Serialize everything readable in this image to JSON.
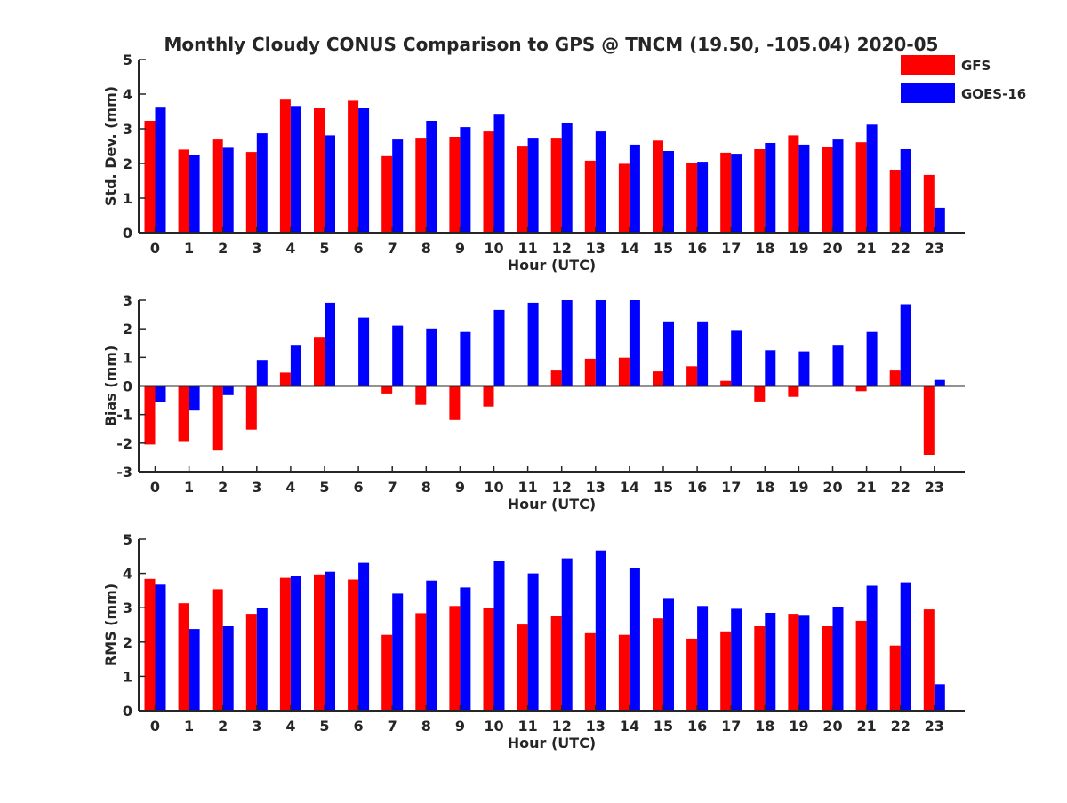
{
  "title": "Monthly Cloudy CONUS Comparison to GPS @ TNCM (19.50, -105.04) 2020-05",
  "colors": {
    "GFS": "#ff0000",
    "GOES-16": "#0000ff",
    "axis": "#262626",
    "background": "#ffffff"
  },
  "legend": {
    "placement": "top-right",
    "entries": [
      "GFS",
      "GOES-16"
    ]
  },
  "chart_data": [
    {
      "type": "bar",
      "xlabel": "Hour (UTC)",
      "ylabel": "Std. Dev. (mm)",
      "ylim": [
        0,
        5
      ],
      "yticks": [
        0,
        1,
        2,
        3,
        4,
        5
      ],
      "grid": false,
      "categories": [
        "0",
        "1",
        "2",
        "3",
        "4",
        "5",
        "6",
        "7",
        "8",
        "9",
        "10",
        "11",
        "12",
        "13",
        "14",
        "15",
        "16",
        "17",
        "18",
        "19",
        "20",
        "21",
        "22",
        "23"
      ],
      "series": [
        {
          "name": "GFS",
          "values": [
            3.23,
            2.4,
            2.69,
            2.33,
            3.84,
            3.59,
            3.81,
            2.21,
            2.74,
            2.77,
            2.92,
            2.51,
            2.74,
            2.08,
            1.99,
            2.66,
            2.01,
            2.31,
            2.41,
            2.81,
            2.48,
            2.61,
            1.82,
            1.67
          ]
        },
        {
          "name": "GOES-16",
          "values": [
            3.61,
            2.23,
            2.45,
            2.87,
            3.66,
            2.81,
            3.59,
            2.69,
            3.23,
            3.05,
            3.43,
            2.74,
            3.18,
            2.92,
            2.54,
            2.36,
            2.05,
            2.28,
            2.59,
            2.54,
            2.69,
            3.12,
            2.41,
            0.72
          ]
        }
      ]
    },
    {
      "type": "bar",
      "xlabel": "Hour (UTC)",
      "ylabel": "Bias (mm)",
      "ylim": [
        -3,
        3
      ],
      "yticks": [
        -3,
        -2,
        -1,
        0,
        1,
        2,
        3
      ],
      "grid": false,
      "categories": [
        "0",
        "1",
        "2",
        "3",
        "4",
        "5",
        "6",
        "7",
        "8",
        "9",
        "10",
        "11",
        "12",
        "13",
        "14",
        "15",
        "16",
        "17",
        "18",
        "19",
        "20",
        "21",
        "22",
        "23"
      ],
      "series": [
        {
          "name": "GFS",
          "values": [
            -2.05,
            -1.96,
            -2.26,
            -1.53,
            0.47,
            1.72,
            0.0,
            -0.26,
            -0.66,
            -1.19,
            -0.72,
            0.0,
            0.54,
            0.95,
            0.99,
            0.51,
            0.69,
            0.18,
            -0.54,
            -0.38,
            0.02,
            -0.18,
            0.54,
            -2.41
          ]
        },
        {
          "name": "GOES-16",
          "values": [
            -0.56,
            -0.86,
            -0.32,
            0.91,
            1.44,
            2.91,
            2.39,
            2.11,
            2.01,
            1.89,
            2.66,
            2.91,
            3.0,
            3.0,
            3.0,
            2.26,
            2.26,
            1.93,
            1.25,
            1.21,
            1.44,
            1.89,
            2.86,
            0.21
          ]
        }
      ]
    },
    {
      "type": "bar",
      "xlabel": "Hour (UTC)",
      "ylabel": "RMS (mm)",
      "ylim": [
        0,
        5
      ],
      "yticks": [
        0,
        1,
        2,
        3,
        4,
        5
      ],
      "grid": false,
      "categories": [
        "0",
        "1",
        "2",
        "3",
        "4",
        "5",
        "6",
        "7",
        "8",
        "9",
        "10",
        "11",
        "12",
        "13",
        "14",
        "15",
        "16",
        "17",
        "18",
        "19",
        "20",
        "21",
        "22",
        "23"
      ],
      "series": [
        {
          "name": "GFS",
          "values": [
            3.84,
            3.13,
            3.54,
            2.82,
            3.87,
            3.97,
            3.82,
            2.21,
            2.84,
            3.05,
            3.0,
            2.51,
            2.77,
            2.26,
            2.21,
            2.69,
            2.1,
            2.31,
            2.46,
            2.82,
            2.46,
            2.62,
            1.9,
            2.95
          ]
        },
        {
          "name": "GOES-16",
          "values": [
            3.67,
            2.38,
            2.46,
            3.0,
            3.92,
            4.05,
            4.31,
            3.41,
            3.79,
            3.59,
            4.36,
            4.0,
            4.44,
            4.67,
            4.15,
            3.28,
            3.05,
            2.97,
            2.85,
            2.79,
            3.03,
            3.64,
            3.74,
            0.77
          ]
        }
      ]
    }
  ]
}
